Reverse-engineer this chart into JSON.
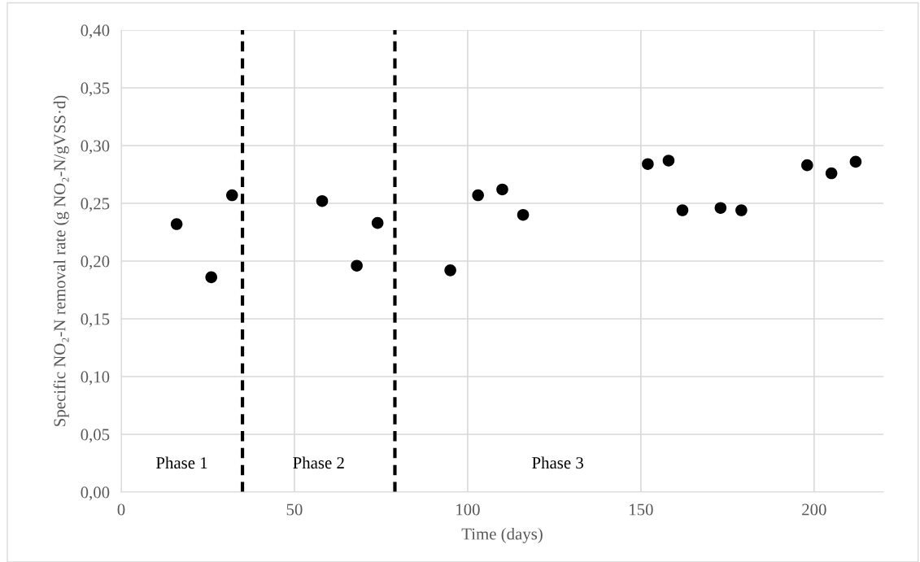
{
  "chart_data": {
    "type": "scatter",
    "xlabel": "Time (days)",
    "ylabel": "Specific NO₂-N removal rate (g NO₂-N/gVSS·d)",
    "x": [
      16,
      26,
      32,
      58,
      68,
      74,
      95,
      103,
      110,
      116,
      152,
      158,
      162,
      173,
      179,
      198,
      205,
      212
    ],
    "values": [
      0.232,
      0.186,
      0.257,
      0.252,
      0.196,
      0.233,
      0.192,
      0.257,
      0.262,
      0.24,
      0.284,
      0.287,
      0.244,
      0.246,
      0.244,
      0.283,
      0.276,
      0.286
    ],
    "color": "#000000",
    "marker": "circle",
    "xlim": [
      0,
      220
    ],
    "xticks": [
      0,
      50,
      100,
      150,
      200
    ],
    "ylim": [
      0,
      0.4
    ],
    "yticks": [
      {
        "value": 0,
        "label": "0,00"
      },
      {
        "value": 0.05,
        "label": "0,05"
      },
      {
        "value": 0.1,
        "label": "0,10"
      },
      {
        "value": 0.15,
        "label": "0,15"
      },
      {
        "value": 0.2,
        "label": "0,20"
      },
      {
        "value": 0.25,
        "label": "0,25"
      },
      {
        "value": 0.3,
        "label": "0,30"
      },
      {
        "value": 0.35,
        "label": "0,35"
      },
      {
        "value": 0.4,
        "label": "0,40"
      }
    ],
    "grid": true,
    "ref_lines": [
      {
        "axis": "x",
        "value": 35,
        "color": "#000000",
        "line_style": "dashed"
      },
      {
        "axis": "x",
        "value": 79,
        "color": "#000000",
        "line_style": "dashed"
      }
    ],
    "annotations": [
      "Phase 1",
      "Phase 2",
      "Phase 3"
    ]
  }
}
